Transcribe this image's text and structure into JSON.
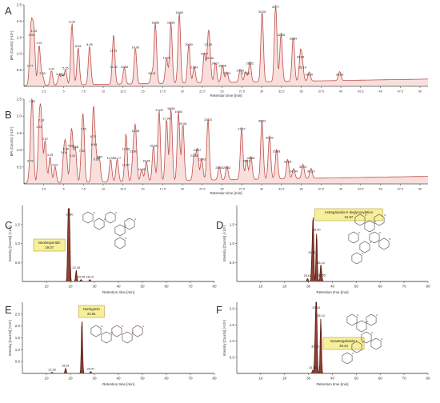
{
  "chart_data": [
    {
      "type": "line",
      "panel_label": "A",
      "ylabel": "BPI (Counts) (×10⁵)",
      "xlabel": "Retention time [min]",
      "xlim": [
        0,
        51
      ],
      "ylim": [
        0,
        2.5
      ],
      "x_ticks": [
        "2.5",
        "5",
        "7.5",
        "10",
        "12.5",
        "15",
        "17.5",
        "20",
        "22.5",
        "25",
        "27.5",
        "30",
        "32.5",
        "35",
        "37.5",
        "40",
        "42.5",
        "45",
        "47.5",
        "50"
      ],
      "y_ticks": [
        "0.5",
        "1.0",
        "1.5",
        "2.0",
        "2.5"
      ],
      "peaks": [
        {
          "x": 0.77,
          "y": 0.55
        },
        {
          "x": 0.94,
          "y": 1.5
        },
        {
          "x": 1.24,
          "y": 1.62
        },
        {
          "x": 1.91,
          "y": 1.25
        },
        {
          "x": 2.33,
          "y": 0.32
        },
        {
          "x": 3.47,
          "y": 0.45
        },
        {
          "x": 4.43,
          "y": 0.3
        },
        {
          "x": 4.82,
          "y": 0.28
        },
        {
          "x": 5.25,
          "y": 0.48
        },
        {
          "x": 6.06,
          "y": 1.9
        },
        {
          "x": 6.84,
          "y": 1.15
        },
        {
          "x": 8.28,
          "y": 1.2
        },
        {
          "x": 11.32,
          "y": 0.52
        },
        {
          "x": 11.31,
          "y": 1.02
        },
        {
          "x": 12.66,
          "y": 0.52
        },
        {
          "x": 14.06,
          "y": 1.12
        },
        {
          "x": 16.14,
          "y": 0.32
        },
        {
          "x": 16.58,
          "y": 1.88
        },
        {
          "x": 17.99,
          "y": 0.8
        },
        {
          "x": 18.55,
          "y": 1.88
        },
        {
          "x": 19.6,
          "y": 2.18
        },
        {
          "x": 20.8,
          "y": 1.2
        },
        {
          "x": 21.49,
          "y": 0.5
        },
        {
          "x": 22.77,
          "y": 0.92
        },
        {
          "x": 23.25,
          "y": 1.2
        },
        {
          "x": 23.45,
          "y": 0.78
        },
        {
          "x": 24.17,
          "y": 0.62
        },
        {
          "x": 25.06,
          "y": 0.55
        },
        {
          "x": 25.62,
          "y": 0.32
        },
        {
          "x": 27.3,
          "y": 0.4
        },
        {
          "x": 27.98,
          "y": 0.32
        },
        {
          "x": 28.52,
          "y": 0.62
        },
        {
          "x": 30.06,
          "y": 2.2
        },
        {
          "x": 31.77,
          "y": 2.45
        },
        {
          "x": 32.45,
          "y": 1.5
        },
        {
          "x": 33.99,
          "y": 1.38
        },
        {
          "x": 34.89,
          "y": 0.82
        },
        {
          "x": 35.14,
          "y": 0.5
        },
        {
          "x": 36.0,
          "y": 0.28
        },
        {
          "x": 39.85,
          "y": 0.28
        }
      ],
      "peak_labels": [
        "0.77",
        "0.94",
        "1.24",
        "1.91",
        "2.33",
        "3.47",
        "4.43",
        "4.82",
        "5.25",
        "6.06",
        "6.84",
        "8.28",
        "11.32",
        "11.31",
        "12.66",
        "14.06",
        "16.14",
        "16.58",
        "17.99",
        "18.55",
        "19.60",
        "20.80",
        "21.49",
        "22.77",
        "23.25",
        "23.45",
        "24.17",
        "25.06",
        "25.62",
        "27.30",
        "27.98",
        "28.52",
        "30.06",
        "31.77",
        "32.45",
        "33.99",
        "34.89",
        "35.14",
        "36.00",
        "39.85"
      ]
    },
    {
      "type": "line",
      "panel_label": "B",
      "ylabel": "BPI (Counts) (×10⁵)",
      "xlabel": "Retention time [min]",
      "xlim": [
        0,
        51
      ],
      "ylim": [
        0,
        2.5
      ],
      "x_ticks": [
        "2.5",
        "5",
        "7.5",
        "10",
        "12.5",
        "15",
        "17.5",
        "20",
        "22.5",
        "25",
        "27.5",
        "30",
        "32.5",
        "35",
        "37.5",
        "40",
        "42.5",
        "45",
        "47.5",
        "50"
      ],
      "y_ticks": [
        "0.5",
        "1.0",
        "1.5",
        "2.0",
        "2.5"
      ],
      "peaks": [
        {
          "x": 0.79,
          "y": 0.6
        },
        {
          "x": 1.04,
          "y": 2.4
        },
        {
          "x": 1.91,
          "y": 1.6
        },
        {
          "x": 2.18,
          "y": 1.8
        },
        {
          "x": 2.67,
          "y": 1.25
        },
        {
          "x": 3.29,
          "y": 0.78
        },
        {
          "x": 3.92,
          "y": 0.48
        },
        {
          "x": 5.04,
          "y": 0.85
        },
        {
          "x": 5.3,
          "y": 0.95
        },
        {
          "x": 5.95,
          "y": 1.05
        },
        {
          "x": 6.1,
          "y": 0.75
        },
        {
          "x": 6.48,
          "y": 1.02
        },
        {
          "x": 7.3,
          "y": 0.9
        },
        {
          "x": 7.5,
          "y": 1.55
        },
        {
          "x": 8.72,
          "y": 1.32
        },
        {
          "x": 8.84,
          "y": 1.08
        },
        {
          "x": 9.12,
          "y": 0.65
        },
        {
          "x": 9.5,
          "y": 0.72
        },
        {
          "x": 10.93,
          "y": 0.68
        },
        {
          "x": 11.77,
          "y": 0.68
        },
        {
          "x": 12.87,
          "y": 0.48
        },
        {
          "x": 12.88,
          "y": 0.95
        },
        {
          "x": 13.8,
          "y": 0.88
        },
        {
          "x": 14.08,
          "y": 1.48
        },
        {
          "x": 14.86,
          "y": 0.35
        },
        {
          "x": 15.45,
          "y": 0.6
        },
        {
          "x": 16.35,
          "y": 1.05
        },
        {
          "x": 17.05,
          "y": 2.1
        },
        {
          "x": 17.99,
          "y": 1.85
        },
        {
          "x": 18.56,
          "y": 2.15
        },
        {
          "x": 19.5,
          "y": 2.05
        },
        {
          "x": 20.06,
          "y": 1.7
        },
        {
          "x": 21.48,
          "y": 0.75
        },
        {
          "x": 21.87,
          "y": 0.92
        },
        {
          "x": 22.43,
          "y": 0.65
        },
        {
          "x": 23.23,
          "y": 1.82
        },
        {
          "x": 24.65,
          "y": 0.4
        },
        {
          "x": 25.62,
          "y": 0.4
        },
        {
          "x": 27.47,
          "y": 1.55
        },
        {
          "x": 28.1,
          "y": 0.6
        },
        {
          "x": 28.65,
          "y": 0.68
        },
        {
          "x": 30.04,
          "y": 1.78
        },
        {
          "x": 30.99,
          "y": 1.28
        },
        {
          "x": 31.88,
          "y": 0.88
        },
        {
          "x": 33.28,
          "y": 0.58
        },
        {
          "x": 34.04,
          "y": 0.3
        },
        {
          "x": 35.22,
          "y": 0.42
        },
        {
          "x": 36.23,
          "y": 0.3
        }
      ],
      "peak_labels": [
        "0.79",
        "1.04",
        "1.91",
        "2.18",
        "2.67",
        "3.29",
        "3.92",
        "5.04",
        "5.30",
        "5.95",
        "6.10",
        "6.48",
        "7.30",
        "7.50",
        "8.72",
        "8.84",
        "9.12",
        "9.50",
        "10.93",
        "11.77",
        "12.87",
        "12.88",
        "13.80",
        "14.08",
        "14.86",
        "15.45",
        "16.35",
        "17.05",
        "17.99",
        "18.56",
        "19.50",
        "20.06",
        "21.48",
        "21.87",
        "22.43",
        "23.23",
        "24.65",
        "25.62",
        "27.47",
        "28.10",
        "28.65",
        "30.04",
        "30.99",
        "31.88",
        "33.28",
        "34.04",
        "35.22",
        "36.23"
      ]
    },
    {
      "type": "line",
      "panel_label": "C",
      "ylabel": "Intensity [Counts] (×10⁵)",
      "xlabel": "Retention time [min]",
      "xlim": [
        0,
        80
      ],
      "ylim": [
        0,
        2.0
      ],
      "x_ticks": [
        "10",
        "20",
        "30",
        "40",
        "50",
        "60",
        "70",
        "80"
      ],
      "y_ticks": [
        "0.5",
        "1.0",
        "1.5"
      ],
      "peaks": [
        {
          "x": 19.07,
          "y": 1.7
        },
        {
          "x": 19.6,
          "y": 1.7
        },
        {
          "x": 22.43,
          "y": 0.3
        },
        {
          "x": 24.45,
          "y": 0.05
        },
        {
          "x": 28.12,
          "y": 0.05
        }
      ],
      "peak_labels": [
        "19.60",
        "22.43",
        "24.45",
        "28.12"
      ],
      "annotation": {
        "name": "Neohesperidin",
        "rt": "19.07"
      }
    },
    {
      "type": "line",
      "panel_label": "D",
      "ylabel": "Intensity [Counts] (×10⁵)",
      "xlabel": "Retention time [min]",
      "xlim": [
        0,
        80
      ],
      "ylim": [
        0,
        2.0
      ],
      "x_ticks": [
        "10",
        "20",
        "30",
        "40",
        "50",
        "60",
        "70",
        "80"
      ],
      "y_ticks": [
        "0.5",
        "1.0",
        "1.5"
      ],
      "peaks": [
        {
          "x": 29.61,
          "y": 0.08
        },
        {
          "x": 31.51,
          "y": 0.7
        },
        {
          "x": 31.97,
          "y": 1.6
        },
        {
          "x": 33.4,
          "y": 1.3
        },
        {
          "x": 35.14,
          "y": 0.42
        },
        {
          "x": 35.55,
          "y": 0.1
        }
      ],
      "peak_labels": [
        "29.61",
        "31.51",
        "33.40",
        "35.14",
        "35.55"
      ],
      "annotation": {
        "name": "Astragaloside II deglycosylation",
        "rt": "31.97"
      }
    },
    {
      "type": "line",
      "panel_label": "E",
      "ylabel": "Intensity [Counts] (×10⁵)",
      "xlabel": "Retention time [min]",
      "xlim": [
        0,
        80
      ],
      "ylim": [
        0,
        3.0
      ],
      "x_ticks": [
        "10",
        "20",
        "30",
        "40",
        "50",
        "60",
        "70",
        "80"
      ],
      "y_ticks": [
        "0.5",
        "1.0",
        "1.5",
        "2.0",
        "2.5"
      ],
      "peaks": [
        {
          "x": 12.33,
          "y": 0.05
        },
        {
          "x": 18.01,
          "y": 0.22
        },
        {
          "x": 24.81,
          "y": 2.3
        },
        {
          "x": 28.47,
          "y": 0.08
        }
      ],
      "peak_labels": [
        "12.33",
        "18.01",
        "28.47"
      ],
      "annotation": {
        "name": "Naringenin",
        "rt": "24.81"
      }
    },
    {
      "type": "line",
      "panel_label": "F",
      "ylabel": "Intensity [Counts] (×10⁵)",
      "xlabel": "Retention time [min]",
      "xlim": [
        0,
        80
      ],
      "ylim": [
        0,
        2.2
      ],
      "x_ticks": [
        "10",
        "20",
        "30",
        "40",
        "50",
        "60",
        "70",
        "80"
      ],
      "y_ticks": [
        "0.5",
        "1.0",
        "1.5",
        "2.0"
      ],
      "peaks": [
        {
          "x": 31.8,
          "y": 0.1
        },
        {
          "x": 32.75,
          "y": 0.75
        },
        {
          "x": 33.18,
          "y": 1.95
        },
        {
          "x": 33.44,
          "y": 1.1
        },
        {
          "x": 35.14,
          "y": 1.7
        }
      ],
      "peak_labels": [
        "31.80",
        "32.75",
        "33.18",
        "35.14"
      ],
      "annotation": {
        "name": "Isoastragaloside I",
        "rt": "33.44"
      }
    }
  ],
  "colors": {
    "trace": "#c0504d",
    "fill": "#f3c5c0",
    "eic_fill": "#7a1f10",
    "axis": "#555555",
    "callout_bg": "#f7ef9a",
    "callout_border": "#b8a13a"
  },
  "icons": {
    "C": "neohesperidin-structure-icon",
    "D": "astragaloside-structure-icon",
    "E": "naringenin-structure-icon",
    "F": "isoastragaloside-structure-icon"
  }
}
